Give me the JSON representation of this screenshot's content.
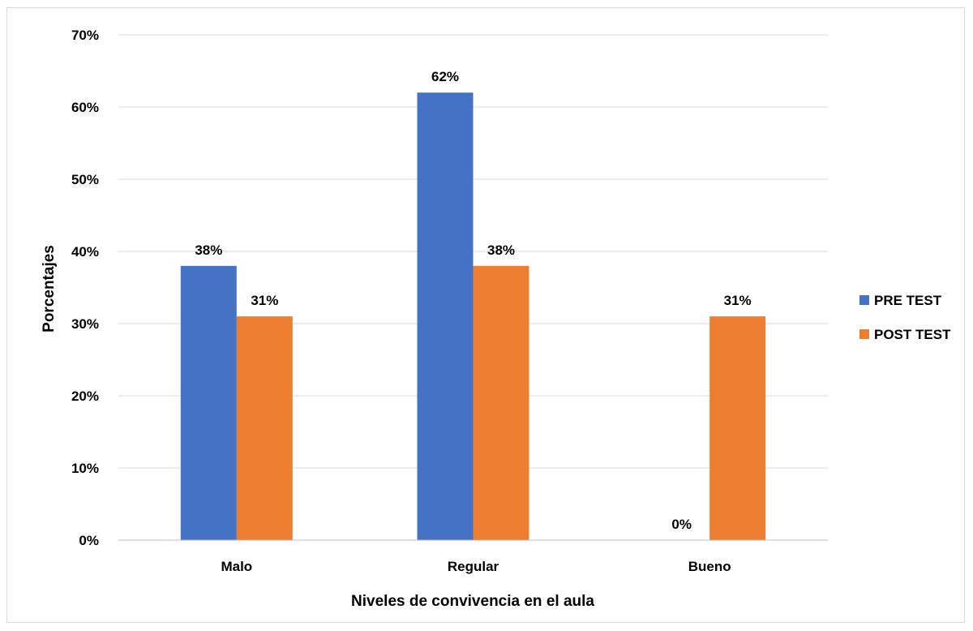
{
  "chart_data": {
    "type": "bar",
    "title": "",
    "xlabel": "Niveles de convivencia en el aula",
    "ylabel": "Porcentajes",
    "categories": [
      "Malo",
      "Regular",
      "Bueno"
    ],
    "series": [
      {
        "name": "PRE TEST",
        "color": "#4472C4",
        "values": [
          38,
          62,
          0
        ],
        "labels": [
          "38%",
          "62%",
          "0%"
        ]
      },
      {
        "name": "POST TEST",
        "color": "#ED7D31",
        "values": [
          31,
          38,
          31
        ],
        "labels": [
          "31%",
          "38%",
          "31%"
        ]
      }
    ],
    "ylim": [
      0,
      70
    ],
    "yticks": [
      0,
      10,
      20,
      30,
      40,
      50,
      60,
      70
    ],
    "ytick_labels": [
      "0%",
      "10%",
      "20%",
      "30%",
      "40%",
      "50%",
      "60%",
      "70%"
    ],
    "grid": true,
    "legend_position": "right"
  }
}
